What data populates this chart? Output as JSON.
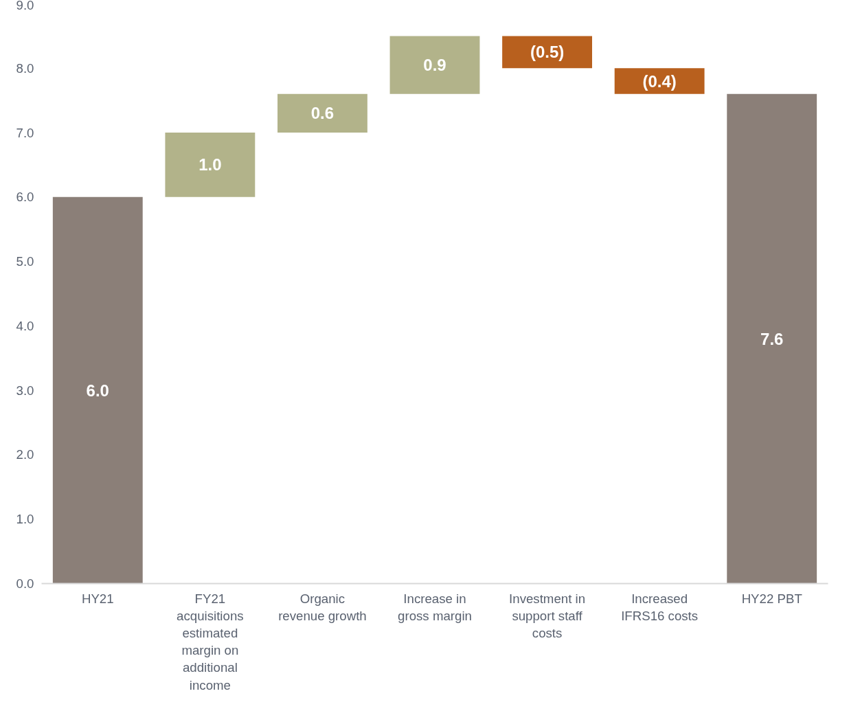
{
  "chart_data": {
    "type": "bar",
    "categories": [
      "HY21",
      "FY21 acquisitions estimated margin on additional income",
      "Organic revenue growth",
      "Increase in gross margin",
      "Investment in support staff costs",
      "Increased IFRS16 costs",
      "HY22 PBT"
    ],
    "values": [
      6.0,
      1.0,
      0.6,
      0.9,
      -0.5,
      -0.4,
      7.6
    ],
    "base": [
      0,
      6.0,
      7.0,
      7.6,
      8.5,
      8.0,
      0
    ],
    "colors": [
      "#8b7f78",
      "#b2b38a",
      "#b2b38a",
      "#b2b38a",
      "#b8601e",
      "#b8601e",
      "#8b7f78"
    ],
    "value_labels": [
      "6.0",
      "1.0",
      "0.6",
      "0.9",
      "(0.5)",
      "(0.4)",
      "7.6"
    ],
    "ylim": [
      0,
      9
    ],
    "yticks": [
      {
        "value": 0,
        "label": "0.0"
      },
      {
        "value": 1,
        "label": "1.0"
      },
      {
        "value": 2,
        "label": "2.0"
      },
      {
        "value": 3,
        "label": "3.0"
      },
      {
        "value": 4,
        "label": "4.0"
      },
      {
        "value": 5,
        "label": "5.0"
      },
      {
        "value": 6,
        "label": "6.0"
      },
      {
        "value": 7,
        "label": "7.0"
      },
      {
        "value": 8,
        "label": "8.0"
      },
      {
        "value": 9,
        "label": "9.0"
      }
    ],
    "grid": false
  }
}
